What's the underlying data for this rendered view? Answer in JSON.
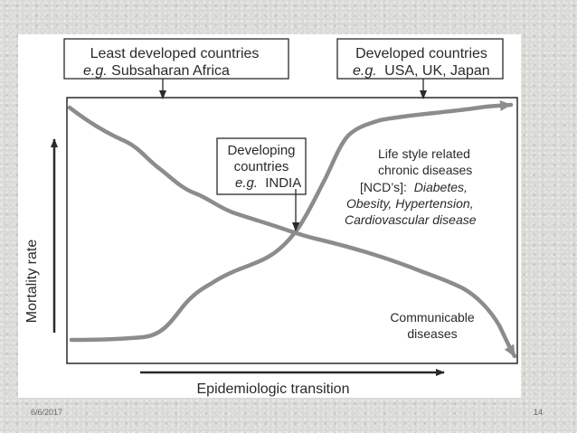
{
  "diagram": {
    "box_least": {
      "line1": "Least developed countries",
      "eg": "e.g.",
      "line2": "Subsaharan  Africa"
    },
    "box_developed": {
      "line1": "Developed countries",
      "eg": "e.g.",
      "line2": "USA, UK, Japan"
    },
    "box_developing": {
      "line1": "Developing",
      "line2": "countries",
      "eg": "e.g.",
      "line3": "INDIA"
    },
    "ncd_label": {
      "line1": "Life style related",
      "line2": "chronic diseases",
      "line3_prefix": "[NCD’s]:",
      "line3_italic": "Diabetes,",
      "line4": "Obesity, Hypertension,",
      "line5": "Cardiovascular disease"
    },
    "communicable_label": {
      "line1": "Communicable",
      "line2": "diseases"
    },
    "y_axis_label": "Mortality rate",
    "x_axis_label": "Epidemiologic transition",
    "colors": {
      "curve": "#8c8c8c",
      "frame": "#2a2a2a",
      "text": "#2a2a2a"
    }
  },
  "footer": {
    "date": "6/6/2017",
    "page_number": "14"
  }
}
